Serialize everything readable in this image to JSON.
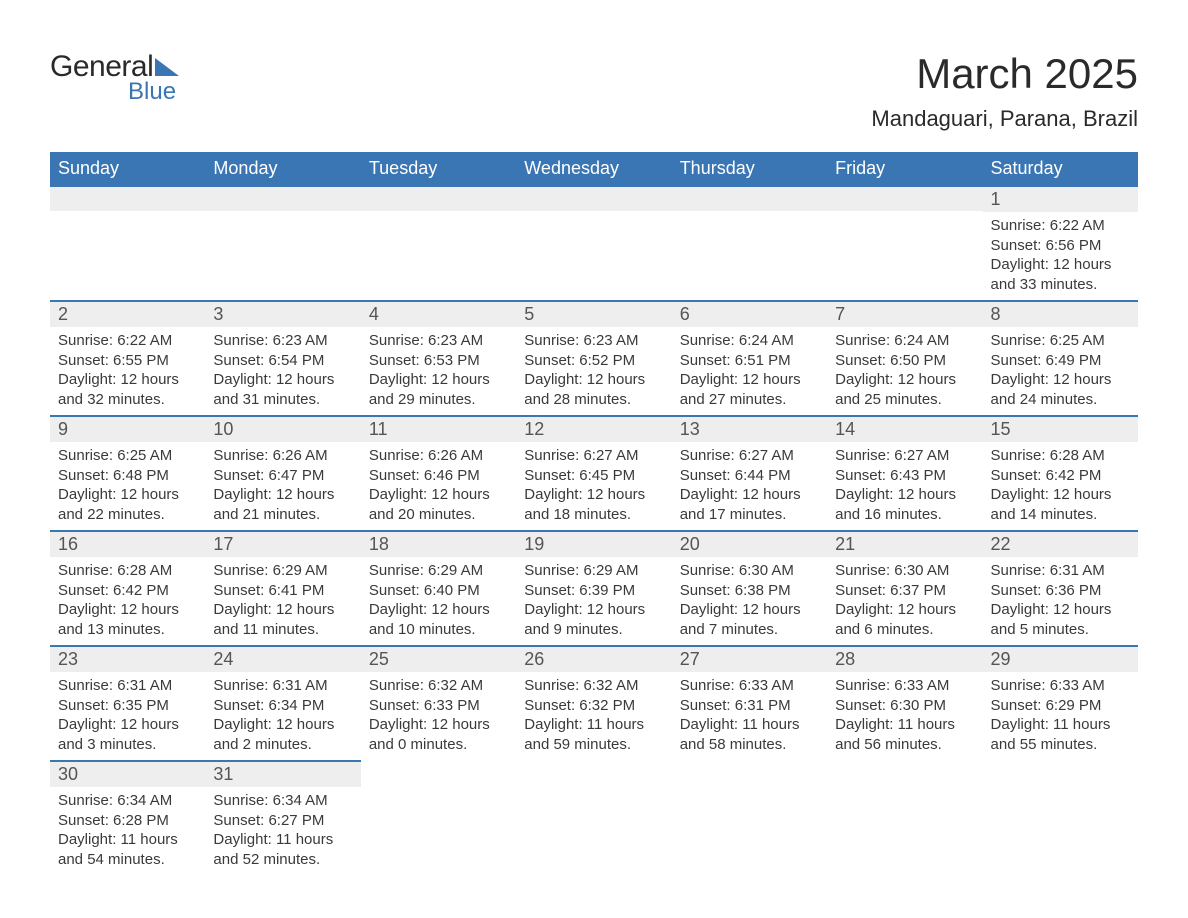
{
  "logo": {
    "word1": "General",
    "word2": "Blue",
    "shape_color": "#3a75b4",
    "text_color_dark": "#2a2a2a",
    "text_color_blue": "#3a75b4"
  },
  "header": {
    "month_title": "March 2025",
    "location": "Mandaguari, Parana, Brazil"
  },
  "colors": {
    "header_bg": "#3a75b4",
    "header_text": "#ffffff",
    "daynum_bg": "#eeeeee",
    "daynum_text": "#555555",
    "body_text": "#3a3a3a",
    "row_border": "#3a75b4",
    "page_bg": "#ffffff"
  },
  "typography": {
    "month_title_fontsize": 42,
    "location_fontsize": 22,
    "weekday_fontsize": 18,
    "daynum_fontsize": 18,
    "body_fontsize": 15,
    "font_family": "Arial"
  },
  "calendar": {
    "type": "table",
    "columns": [
      "Sunday",
      "Monday",
      "Tuesday",
      "Wednesday",
      "Thursday",
      "Friday",
      "Saturday"
    ],
    "weeks": [
      [
        null,
        null,
        null,
        null,
        null,
        null,
        {
          "n": "1",
          "sunrise": "Sunrise: 6:22 AM",
          "sunset": "Sunset: 6:56 PM",
          "daylight": "Daylight: 12 hours and 33 minutes."
        }
      ],
      [
        {
          "n": "2",
          "sunrise": "Sunrise: 6:22 AM",
          "sunset": "Sunset: 6:55 PM",
          "daylight": "Daylight: 12 hours and 32 minutes."
        },
        {
          "n": "3",
          "sunrise": "Sunrise: 6:23 AM",
          "sunset": "Sunset: 6:54 PM",
          "daylight": "Daylight: 12 hours and 31 minutes."
        },
        {
          "n": "4",
          "sunrise": "Sunrise: 6:23 AM",
          "sunset": "Sunset: 6:53 PM",
          "daylight": "Daylight: 12 hours and 29 minutes."
        },
        {
          "n": "5",
          "sunrise": "Sunrise: 6:23 AM",
          "sunset": "Sunset: 6:52 PM",
          "daylight": "Daylight: 12 hours and 28 minutes."
        },
        {
          "n": "6",
          "sunrise": "Sunrise: 6:24 AM",
          "sunset": "Sunset: 6:51 PM",
          "daylight": "Daylight: 12 hours and 27 minutes."
        },
        {
          "n": "7",
          "sunrise": "Sunrise: 6:24 AM",
          "sunset": "Sunset: 6:50 PM",
          "daylight": "Daylight: 12 hours and 25 minutes."
        },
        {
          "n": "8",
          "sunrise": "Sunrise: 6:25 AM",
          "sunset": "Sunset: 6:49 PM",
          "daylight": "Daylight: 12 hours and 24 minutes."
        }
      ],
      [
        {
          "n": "9",
          "sunrise": "Sunrise: 6:25 AM",
          "sunset": "Sunset: 6:48 PM",
          "daylight": "Daylight: 12 hours and 22 minutes."
        },
        {
          "n": "10",
          "sunrise": "Sunrise: 6:26 AM",
          "sunset": "Sunset: 6:47 PM",
          "daylight": "Daylight: 12 hours and 21 minutes."
        },
        {
          "n": "11",
          "sunrise": "Sunrise: 6:26 AM",
          "sunset": "Sunset: 6:46 PM",
          "daylight": "Daylight: 12 hours and 20 minutes."
        },
        {
          "n": "12",
          "sunrise": "Sunrise: 6:27 AM",
          "sunset": "Sunset: 6:45 PM",
          "daylight": "Daylight: 12 hours and 18 minutes."
        },
        {
          "n": "13",
          "sunrise": "Sunrise: 6:27 AM",
          "sunset": "Sunset: 6:44 PM",
          "daylight": "Daylight: 12 hours and 17 minutes."
        },
        {
          "n": "14",
          "sunrise": "Sunrise: 6:27 AM",
          "sunset": "Sunset: 6:43 PM",
          "daylight": "Daylight: 12 hours and 16 minutes."
        },
        {
          "n": "15",
          "sunrise": "Sunrise: 6:28 AM",
          "sunset": "Sunset: 6:42 PM",
          "daylight": "Daylight: 12 hours and 14 minutes."
        }
      ],
      [
        {
          "n": "16",
          "sunrise": "Sunrise: 6:28 AM",
          "sunset": "Sunset: 6:42 PM",
          "daylight": "Daylight: 12 hours and 13 minutes."
        },
        {
          "n": "17",
          "sunrise": "Sunrise: 6:29 AM",
          "sunset": "Sunset: 6:41 PM",
          "daylight": "Daylight: 12 hours and 11 minutes."
        },
        {
          "n": "18",
          "sunrise": "Sunrise: 6:29 AM",
          "sunset": "Sunset: 6:40 PM",
          "daylight": "Daylight: 12 hours and 10 minutes."
        },
        {
          "n": "19",
          "sunrise": "Sunrise: 6:29 AM",
          "sunset": "Sunset: 6:39 PM",
          "daylight": "Daylight: 12 hours and 9 minutes."
        },
        {
          "n": "20",
          "sunrise": "Sunrise: 6:30 AM",
          "sunset": "Sunset: 6:38 PM",
          "daylight": "Daylight: 12 hours and 7 minutes."
        },
        {
          "n": "21",
          "sunrise": "Sunrise: 6:30 AM",
          "sunset": "Sunset: 6:37 PM",
          "daylight": "Daylight: 12 hours and 6 minutes."
        },
        {
          "n": "22",
          "sunrise": "Sunrise: 6:31 AM",
          "sunset": "Sunset: 6:36 PM",
          "daylight": "Daylight: 12 hours and 5 minutes."
        }
      ],
      [
        {
          "n": "23",
          "sunrise": "Sunrise: 6:31 AM",
          "sunset": "Sunset: 6:35 PM",
          "daylight": "Daylight: 12 hours and 3 minutes."
        },
        {
          "n": "24",
          "sunrise": "Sunrise: 6:31 AM",
          "sunset": "Sunset: 6:34 PM",
          "daylight": "Daylight: 12 hours and 2 minutes."
        },
        {
          "n": "25",
          "sunrise": "Sunrise: 6:32 AM",
          "sunset": "Sunset: 6:33 PM",
          "daylight": "Daylight: 12 hours and 0 minutes."
        },
        {
          "n": "26",
          "sunrise": "Sunrise: 6:32 AM",
          "sunset": "Sunset: 6:32 PM",
          "daylight": "Daylight: 11 hours and 59 minutes."
        },
        {
          "n": "27",
          "sunrise": "Sunrise: 6:33 AM",
          "sunset": "Sunset: 6:31 PM",
          "daylight": "Daylight: 11 hours and 58 minutes."
        },
        {
          "n": "28",
          "sunrise": "Sunrise: 6:33 AM",
          "sunset": "Sunset: 6:30 PM",
          "daylight": "Daylight: 11 hours and 56 minutes."
        },
        {
          "n": "29",
          "sunrise": "Sunrise: 6:33 AM",
          "sunset": "Sunset: 6:29 PM",
          "daylight": "Daylight: 11 hours and 55 minutes."
        }
      ],
      [
        {
          "n": "30",
          "sunrise": "Sunrise: 6:34 AM",
          "sunset": "Sunset: 6:28 PM",
          "daylight": "Daylight: 11 hours and 54 minutes."
        },
        {
          "n": "31",
          "sunrise": "Sunrise: 6:34 AM",
          "sunset": "Sunset: 6:27 PM",
          "daylight": "Daylight: 11 hours and 52 minutes."
        },
        null,
        null,
        null,
        null,
        null
      ]
    ]
  }
}
